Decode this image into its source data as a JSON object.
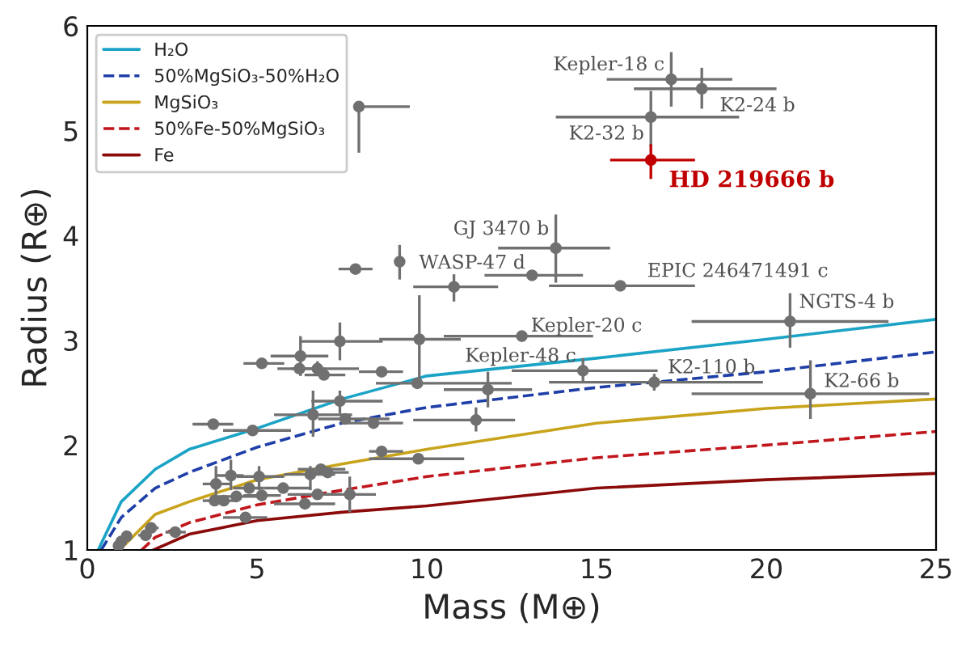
{
  "chart_data": {
    "type": "scatter",
    "xlabel": "Mass (M⊕)",
    "ylabel": "Radius (R⊕)",
    "xlim": [
      0,
      25
    ],
    "ylim": [
      1,
      6
    ],
    "xticks": [
      0,
      5,
      10,
      15,
      20,
      25
    ],
    "yticks": [
      1,
      2,
      3,
      4,
      5,
      6
    ],
    "grid": false,
    "legend": "top left",
    "series": [
      {
        "name": "H₂O",
        "type": "line",
        "line_style": "solid",
        "color": "#1ba3c6",
        "x": [
          0.32,
          1,
          2,
          3,
          5,
          7.5,
          10,
          15,
          20,
          25
        ],
        "values": [
          1,
          1.46,
          1.77,
          1.96,
          2.16,
          2.44,
          2.66,
          2.83,
          3.01,
          3.2
        ]
      },
      {
        "name": "50%MgSiO₃-50%H₂O",
        "type": "line",
        "line_style": "dashed",
        "color": "#1f3fa8",
        "x": [
          0.41,
          1,
          2,
          3,
          5,
          7.5,
          10,
          15,
          20,
          25
        ],
        "values": [
          1,
          1.31,
          1.59,
          1.74,
          1.98,
          2.21,
          2.36,
          2.55,
          2.7,
          2.89
        ]
      },
      {
        "name": "MgSiO₃",
        "type": "line",
        "line_style": "solid",
        "color": "#c8a41c",
        "x": [
          0.95,
          2,
          3,
          5,
          7.5,
          10,
          15,
          20,
          25
        ],
        "values": [
          1,
          1.34,
          1.46,
          1.67,
          1.82,
          1.96,
          2.21,
          2.35,
          2.44
        ]
      },
      {
        "name": "50%Fe-50%MgSiO₃",
        "type": "line",
        "line_style": "dashed",
        "color": "#c0161c",
        "x": [
          1.6,
          2,
          3,
          5,
          7.5,
          10,
          15,
          20,
          25
        ],
        "values": [
          1,
          1.12,
          1.26,
          1.43,
          1.57,
          1.7,
          1.88,
          2.0,
          2.13
        ]
      },
      {
        "name": "Fe",
        "type": "line",
        "line_style": "solid",
        "color": "#8b0a0a",
        "x": [
          1.95,
          3,
          5,
          7.5,
          10,
          15,
          20,
          25
        ],
        "values": [
          1,
          1.15,
          1.28,
          1.36,
          1.42,
          1.59,
          1.67,
          1.73
        ]
      },
      {
        "marker": "circle",
        "color": "#707070",
        "x": [
          17.2,
          18.1,
          16.6,
          13.8,
          13.1,
          15.7,
          20.7,
          12.8,
          14.6,
          16.7,
          21.3,
          8.0,
          7.9,
          9.2,
          10.8,
          5.14,
          6.28,
          7.44,
          9.78,
          6.25,
          6.78,
          6.97,
          8.67,
          9.72,
          11.8,
          11.45,
          3.71,
          4.87,
          6.65,
          7.44,
          7.6,
          8.43,
          8.67,
          9.75,
          3.79,
          4.23,
          5.06,
          3.75,
          4.02,
          4.39,
          4.77,
          5.14,
          5.77,
          6.57,
          6.88,
          7.08,
          6.78,
          7.73,
          6.41,
          4.66,
          2.59,
          1.88,
          1.72,
          1.16,
          1.0,
          0.92
        ],
        "values": [
          5.49,
          5.4,
          5.13,
          3.88,
          3.62,
          3.52,
          3.18,
          3.04,
          2.71,
          2.6,
          2.49,
          5.23,
          3.68,
          3.75,
          3.51,
          2.78,
          2.85,
          2.99,
          3.01,
          2.73,
          2.73,
          2.67,
          2.7,
          2.59,
          2.53,
          2.24,
          2.2,
          2.14,
          2.29,
          2.42,
          2.25,
          2.21,
          1.94,
          1.87,
          1.63,
          1.71,
          1.7,
          1.47,
          1.47,
          1.51,
          1.59,
          1.52,
          1.59,
          1.72,
          1.77,
          1.74,
          1.53,
          1.53,
          1.44,
          1.31,
          1.17,
          1.21,
          1.14,
          1.13,
          1.08,
          1.04
        ],
        "xerrors": [
          [
            15.3,
            19.0
          ],
          [
            16.1,
            20.3
          ],
          [
            13.8,
            19.2
          ],
          [
            12.1,
            15.4
          ],
          [
            11.7,
            14.6
          ],
          [
            13.6,
            17.9
          ],
          [
            17.8,
            23.6
          ],
          [
            10.5,
            14.9
          ],
          [
            12.5,
            16.8
          ],
          [
            13.6,
            19.9
          ],
          [
            17.8,
            24.8
          ],
          [
            8.0,
            9.5
          ],
          [
            7.4,
            8.4
          ],
          null,
          [
            9.6,
            12.1
          ],
          [
            4.6,
            5.8
          ],
          [
            5.4,
            7.1
          ],
          [
            6.3,
            8.7
          ],
          [
            8.6,
            11.0
          ],
          [
            5.6,
            7.0
          ],
          [
            6.0,
            8.0
          ],
          [
            6.4,
            7.6
          ],
          [
            8.0,
            9.3
          ],
          [
            8.5,
            12.5
          ],
          [
            10.5,
            13.1
          ],
          [
            9.6,
            12.6
          ],
          [
            3.1,
            4.3
          ],
          [
            4.0,
            6.0
          ],
          [
            5.5,
            7.8
          ],
          [
            6.6,
            8.7
          ],
          [
            6.8,
            8.9
          ],
          [
            7.5,
            9.3
          ],
          [
            8.3,
            9.3
          ],
          [
            8.3,
            11.1
          ],
          [
            3.4,
            4.2
          ],
          [
            3.8,
            4.6
          ],
          [
            4.4,
            5.8
          ],
          [
            3.4,
            4.1
          ],
          [
            3.6,
            4.4
          ],
          [
            3.8,
            5.0
          ],
          [
            4.3,
            5.2
          ],
          [
            4.6,
            5.7
          ],
          [
            5.2,
            6.6
          ],
          [
            5.8,
            7.3
          ],
          [
            6.2,
            7.6
          ],
          [
            6.5,
            7.7
          ],
          [
            5.9,
            7.5
          ],
          [
            7.0,
            8.5
          ],
          [
            5.5,
            7.3
          ],
          [
            4.0,
            5.3
          ],
          [
            2.3,
            2.9
          ],
          [
            1.7,
            2.1
          ],
          [
            1.5,
            1.9
          ],
          [
            1.0,
            1.3
          ],
          [
            0.9,
            1.1
          ],
          [
            0.85,
            1.0
          ]
        ],
        "errors": [
          [
            5.23,
            5.75
          ],
          [
            5.21,
            5.6
          ],
          [
            4.85,
            5.38
          ],
          [
            3.55,
            4.2
          ],
          null,
          null,
          [
            2.93,
            3.45
          ],
          null,
          [
            2.59,
            2.83
          ],
          [
            2.52,
            2.68
          ],
          [
            2.25,
            2.81
          ],
          [
            4.79,
            5.23
          ],
          null,
          [
            3.58,
            3.91
          ],
          [
            3.37,
            3.63
          ],
          null,
          [
            2.66,
            3.04
          ],
          [
            2.81,
            3.17
          ],
          [
            2.63,
            3.43
          ],
          null,
          [
            2.66,
            2.8
          ],
          null,
          null,
          null,
          [
            2.36,
            2.7
          ],
          [
            2.13,
            2.36
          ],
          null,
          null,
          [
            2.08,
            2.52
          ],
          [
            2.3,
            2.52
          ],
          null,
          null,
          null,
          null,
          [
            1.46,
            1.8
          ],
          [
            1.57,
            1.86
          ],
          [
            1.57,
            1.8
          ],
          null,
          null,
          null,
          null,
          null,
          null,
          [
            1.57,
            1.8
          ],
          null,
          null,
          null,
          [
            1.36,
            1.7
          ],
          null,
          null,
          null,
          null,
          null,
          null,
          null,
          null
        ]
      },
      {
        "name": "HD 219666 b",
        "marker": "circle",
        "color": "#c00000",
        "x": [
          16.6
        ],
        "values": [
          4.72
        ],
        "xerrors": [
          [
            15.4,
            17.9
          ]
        ],
        "errors": [
          [
            4.54,
            4.87
          ]
        ]
      }
    ],
    "annotations": [
      {
        "text": "Kepler-18 c",
        "x": 17.2,
        "y": 5.49
      },
      {
        "text": "K2-24 b",
        "x": 18.1,
        "y": 5.4
      },
      {
        "text": "K2-32 b",
        "x": 16.6,
        "y": 5.13
      },
      {
        "text": "GJ 3470 b",
        "x": 13.8,
        "y": 3.88
      },
      {
        "text": "WASP-47 d",
        "x": 13.1,
        "y": 3.62
      },
      {
        "text": "EPIC 246471491 c",
        "x": 15.7,
        "y": 3.52
      },
      {
        "text": "NGTS-4 b",
        "x": 20.7,
        "y": 3.18
      },
      {
        "text": "Kepler-20 c",
        "x": 12.8,
        "y": 3.04
      },
      {
        "text": "Kepler-48 c",
        "x": 14.6,
        "y": 2.71
      },
      {
        "text": "K2-110 b",
        "x": 16.7,
        "y": 2.6
      },
      {
        "text": "K2-66 b",
        "x": 21.3,
        "y": 2.49
      }
    ]
  }
}
